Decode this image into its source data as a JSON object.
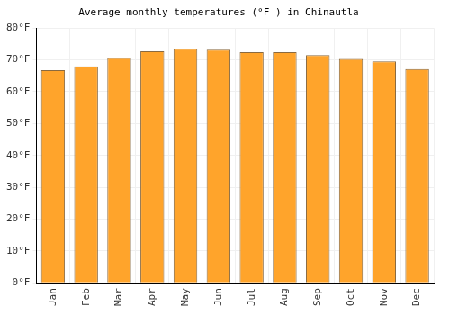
{
  "chart_data": {
    "type": "bar",
    "title": "Average monthly temperatures (°F ) in Chinautla",
    "categories": [
      "Jan",
      "Feb",
      "Mar",
      "Apr",
      "May",
      "Jun",
      "Jul",
      "Aug",
      "Sep",
      "Oct",
      "Nov",
      "Dec"
    ],
    "values": [
      66.8,
      68.0,
      70.6,
      72.7,
      73.5,
      73.2,
      72.4,
      72.4,
      71.5,
      70.3,
      69.5,
      67.1
    ],
    "color": "#ffa42b",
    "ylim": [
      0,
      80
    ],
    "yticks": [
      {
        "value": 0,
        "label": "0°F"
      },
      {
        "value": 10,
        "label": "10°F"
      },
      {
        "value": 20,
        "label": "20°F"
      },
      {
        "value": 30,
        "label": "30°F"
      },
      {
        "value": 40,
        "label": "40°F"
      },
      {
        "value": 50,
        "label": "50°F"
      },
      {
        "value": 60,
        "label": "60°F"
      },
      {
        "value": 70,
        "label": "70°F"
      },
      {
        "value": 80,
        "label": "80°F"
      }
    ],
    "grid": true
  }
}
